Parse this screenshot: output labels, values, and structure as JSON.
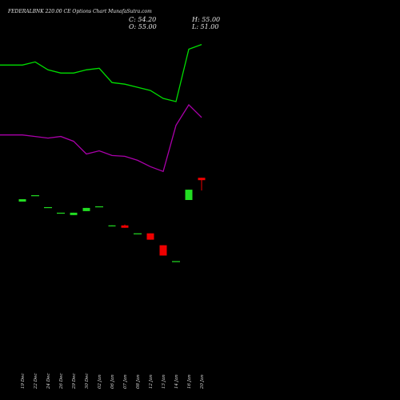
{
  "header": {
    "title": "FEDERALBNK 220.00 CE Options Chart MunafaSutra.com",
    "close_label": "C: 54.20",
    "open_label": "O: 55.00",
    "high_label": "H: 55.00",
    "low_label": "L: 51.00"
  },
  "chart_data": {
    "type": "candlestick",
    "title": "FEDERALBNK 220.00 CE Options Chart MunafaSutra.com",
    "categories": [
      "19 Dec",
      "22 Dec",
      "24 Dec",
      "26 Dec",
      "29 Dec",
      "30 Dec",
      "02 Jan",
      "06 Jan",
      "07 Jan",
      "08 Jan",
      "12 Jan",
      "13 Jan",
      "14 Jan",
      "16 Jan",
      "20 Jan"
    ],
    "candles": [
      {
        "open": 17.0,
        "close": 18.5,
        "high": 18.5,
        "low": 17.0,
        "color": "#22dd22"
      },
      {
        "open": 21.0,
        "close": 21.0,
        "high": 21.0,
        "low": 21.0,
        "color": "#22dd22"
      },
      {
        "open": 13.5,
        "close": 13.5,
        "high": 13.5,
        "low": 13.5,
        "color": "#22dd22"
      },
      {
        "open": 10.0,
        "close": 10.0,
        "high": 10.0,
        "low": 10.0,
        "color": "#22dd22"
      },
      {
        "open": 8.5,
        "close": 10.0,
        "high": 10.0,
        "low": 8.5,
        "color": "#22dd22"
      },
      {
        "open": 11.0,
        "close": 13.0,
        "high": 13.0,
        "low": 11.0,
        "color": "#22dd22"
      },
      {
        "open": 14.0,
        "close": 14.0,
        "high": 14.0,
        "low": 14.0,
        "color": "#22dd22"
      },
      {
        "open": 1.5,
        "close": 2.0,
        "high": 2.0,
        "low": 1.5,
        "color": "#22dd22"
      },
      {
        "open": 2.0,
        "close": 0.5,
        "high": 2.5,
        "low": 0.5,
        "color": "#ee0000"
      },
      {
        "open": -3.0,
        "close": -3.0,
        "high": -3.0,
        "low": -3.0,
        "color": "#22dd22"
      },
      {
        "open": -3.0,
        "close": -7.0,
        "high": -3.0,
        "low": -7.0,
        "color": "#ee0000"
      },
      {
        "open": -10.5,
        "close": -17.0,
        "high": -10.5,
        "low": -17.0,
        "color": "#ee0000"
      },
      {
        "open": -20.5,
        "close": -20.5,
        "high": -20.5,
        "low": -20.5,
        "color": "#22dd22"
      },
      {
        "open": 18.0,
        "close": 24.5,
        "high": 24.5,
        "low": 18.0,
        "color": "#22dd22"
      },
      {
        "open": 32.0,
        "close": 30.5,
        "high": 32.0,
        "low": 24.0,
        "color": "#ee0000"
      }
    ],
    "series": [
      {
        "type": "line",
        "color": "#00dd00",
        "x": [
          -2,
          0,
          1,
          2,
          3,
          4,
          5,
          6,
          7,
          8,
          9,
          10,
          11,
          12,
          13,
          14,
          15
        ],
        "values": [
          103,
          103,
          105,
          100,
          98,
          98,
          100,
          101,
          92,
          91,
          89,
          87,
          82,
          80,
          113,
          116,
          null
        ]
      },
      {
        "type": "line",
        "color": "#aa00aa",
        "x": [
          -2,
          0,
          1,
          2,
          3,
          4,
          5,
          6,
          7,
          8,
          9,
          10,
          11,
          12,
          13,
          14,
          15
        ],
        "values": [
          59,
          59,
          58,
          57,
          58,
          55,
          47,
          49,
          46,
          45.5,
          43,
          39,
          36,
          65,
          78,
          70,
          null
        ]
      }
    ],
    "ylim": [
      -108,
      144
    ],
    "xlim": [
      -2,
      15
    ],
    "grid": false,
    "legend": "none"
  }
}
